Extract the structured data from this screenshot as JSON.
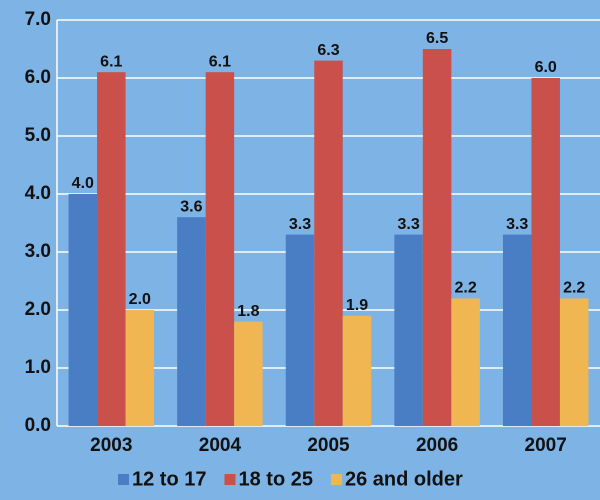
{
  "chart_data": {
    "type": "bar",
    "categories": [
      "2003",
      "2004",
      "2005",
      "2006",
      "2007"
    ],
    "series": [
      {
        "name": "12 to 17",
        "color": "#4a7ec4",
        "values": [
          4.0,
          3.6,
          3.3,
          3.3,
          3.3
        ],
        "value_labels": [
          "4.0",
          "3.6",
          "3.3",
          "3.3",
          "3.3"
        ]
      },
      {
        "name": "18 to 25",
        "color": "#c9504b",
        "values": [
          6.1,
          6.1,
          6.3,
          6.5,
          6.0
        ],
        "value_labels": [
          "6.1",
          "6.1",
          "6.3",
          "6.5",
          "6.0"
        ]
      },
      {
        "name": "26 and older",
        "color": "#f0b652",
        "values": [
          2.0,
          1.8,
          1.9,
          2.2,
          2.2
        ],
        "value_labels": [
          "2.0",
          "1.8",
          "1.9",
          "2.2",
          "2.2"
        ]
      }
    ],
    "ylim": [
      0,
      7
    ],
    "yticks": [
      {
        "value": 0,
        "label": "0.0"
      },
      {
        "value": 1,
        "label": "1.0"
      },
      {
        "value": 2,
        "label": "2.0"
      },
      {
        "value": 3,
        "label": "3.0"
      },
      {
        "value": 4,
        "label": "4.0"
      },
      {
        "value": 5,
        "label": "5.0"
      },
      {
        "value": 6,
        "label": "6.0"
      },
      {
        "value": 7,
        "label": "7.0"
      }
    ],
    "grid": true,
    "legend": "bottom",
    "background": "#7db4e5"
  }
}
